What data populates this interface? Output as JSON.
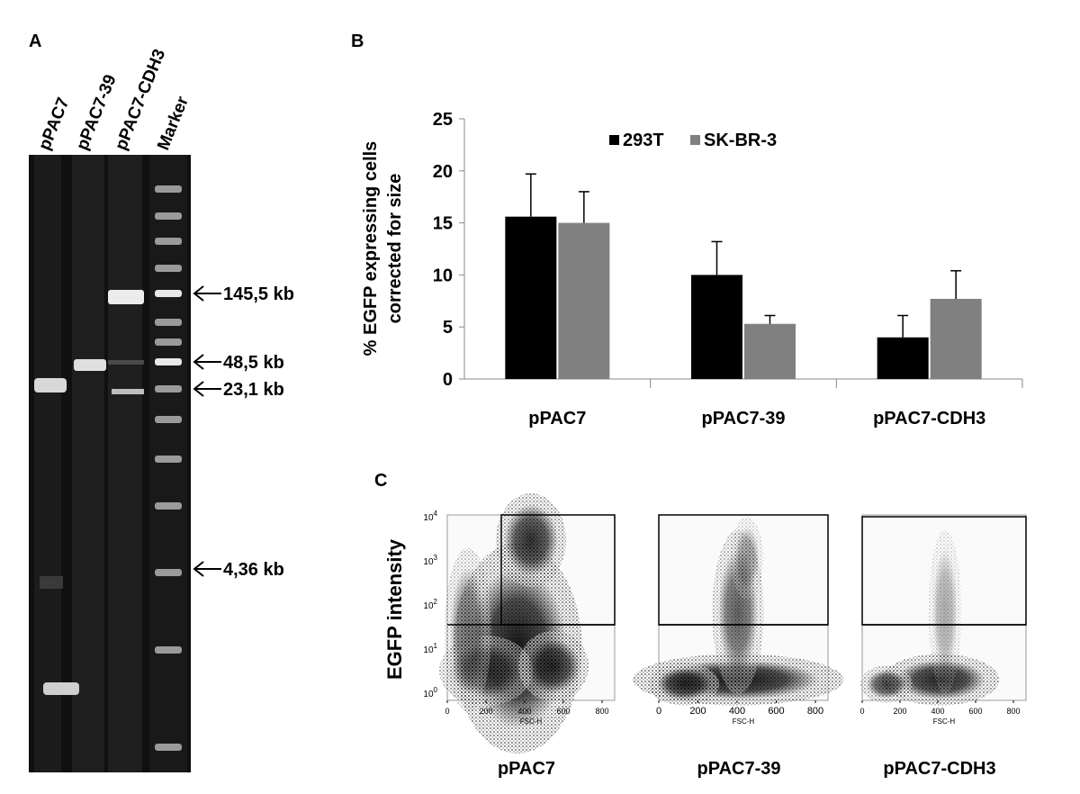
{
  "panel_a": {
    "label": "A",
    "lanes": [
      "pPAC7",
      "pPAC7-39",
      "pPAC7-CDH3",
      "Marker"
    ],
    "markers": [
      "145,5 kb",
      "48,5 kb",
      "23,1 kb",
      "4,36 kb"
    ]
  },
  "panel_b": {
    "label": "B"
  },
  "chart_data": {
    "type": "bar",
    "ylabel": [
      "% EGFP expressing cells",
      "corrected for size"
    ],
    "categories": [
      "pPAC7",
      "pPAC7-39",
      "pPAC7-CDH3"
    ],
    "series": [
      {
        "name": "293T",
        "color": "#000000",
        "values": [
          15.6,
          10,
          4
        ],
        "errors": [
          4.1,
          3.2,
          2.1
        ]
      },
      {
        "name": "SK-BR-3",
        "color": "#808080",
        "values": [
          15,
          5.3,
          7.7
        ],
        "errors": [
          3,
          0.8,
          2.7
        ]
      }
    ],
    "ylim": [
      0,
      25
    ],
    "yticks": [
      0,
      5,
      10,
      15,
      20,
      25
    ],
    "legend": "top"
  },
  "panel_c": {
    "label": "C",
    "ylabel": "EGFP intensity",
    "yticks": [
      {
        "base": "10",
        "exp": "4"
      },
      {
        "base": "10",
        "exp": "3"
      },
      {
        "base": "10",
        "exp": "2"
      },
      {
        "base": "10",
        "exp": "1"
      },
      {
        "base": "10",
        "exp": "0"
      }
    ],
    "xticks": [
      0,
      200,
      400,
      600,
      800
    ],
    "xlabel": "FSC-H",
    "titles": [
      "pPAC7",
      "pPAC7-39",
      "pPAC7-CDH3"
    ]
  }
}
